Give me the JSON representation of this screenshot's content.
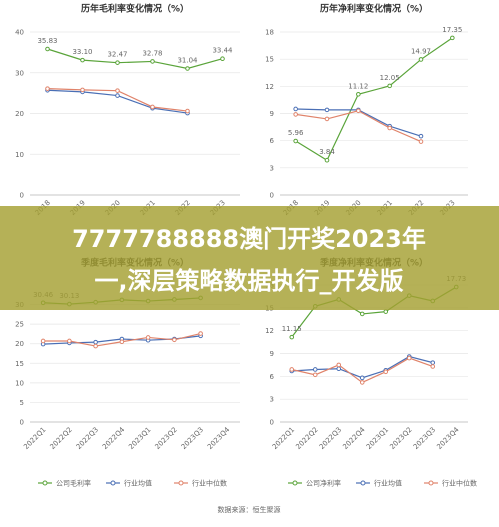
{
  "chart_data": [
    {
      "type": "line",
      "title": "历年毛利率变化情况（%）",
      "categories": [
        "2018",
        "2019",
        "2020",
        "2021",
        "2022",
        "2023"
      ],
      "ylim": [
        0,
        40
      ],
      "yticks": [
        0,
        10,
        20,
        30,
        40
      ],
      "grid": true,
      "series": [
        {
          "name": "公司毛利率",
          "color": "#5aa43a",
          "values": [
            35.83,
            33.1,
            32.47,
            32.78,
            31.04,
            33.44
          ],
          "value_labels": [
            "35.83",
            "33.10",
            "32.47",
            "32.78",
            "31.04",
            "33.44"
          ]
        },
        {
          "name": "行业均值",
          "color": "#4a6fb5",
          "values": [
            25.7,
            25.3,
            24.4,
            21.3,
            20.1,
            null
          ]
        },
        {
          "name": "行业中位数",
          "color": "#e0836a",
          "values": [
            26.1,
            25.8,
            25.6,
            21.6,
            20.6,
            null
          ]
        }
      ]
    },
    {
      "type": "line",
      "title": "历年净利率变化情况（%）",
      "categories": [
        "2018",
        "2019",
        "2020",
        "2021",
        "2022",
        "2023"
      ],
      "ylim": [
        0,
        18
      ],
      "yticks": [
        0,
        3,
        6,
        9,
        12,
        15,
        18
      ],
      "grid": true,
      "series": [
        {
          "name": "公司净利率",
          "color": "#5aa43a",
          "values": [
            5.96,
            3.84,
            11.12,
            12.05,
            14.97,
            17.35
          ],
          "value_labels": [
            "5.96",
            "3.84",
            "11.12",
            "12.05",
            "14.97",
            "17.35"
          ]
        },
        {
          "name": "行业均值",
          "color": "#4a6fb5",
          "values": [
            9.5,
            9.4,
            9.4,
            7.6,
            6.5,
            null
          ]
        },
        {
          "name": "行业中位数",
          "color": "#e0836a",
          "values": [
            8.9,
            8.4,
            9.3,
            7.4,
            5.9,
            null
          ]
        }
      ]
    },
    {
      "type": "line",
      "title": "季度毛利率变化情况（%）",
      "categories": [
        "2022Q1",
        "2022Q2",
        "2022Q3",
        "2022Q4",
        "2023Q1",
        "2023Q2",
        "2023Q3",
        "2023Q4"
      ],
      "ylim": [
        0,
        35
      ],
      "yticks": [
        0,
        5,
        10,
        15,
        20,
        25,
        30
      ],
      "grid": true,
      "legend": "bottom",
      "series": [
        {
          "name": "公司毛利率",
          "color": "#5aa43a",
          "values": [
            30.46,
            30.13,
            30.6,
            31.2,
            30.9,
            31.3,
            31.7,
            null
          ],
          "value_labels": [
            "30.46",
            "30.13",
            null,
            null,
            null,
            null,
            null,
            null
          ]
        },
        {
          "name": "行业均值",
          "color": "#4a6fb5",
          "values": [
            19.9,
            20.2,
            20.4,
            21.2,
            20.9,
            21.2,
            22.0,
            null
          ]
        },
        {
          "name": "行业中位数",
          "color": "#e0836a",
          "values": [
            20.7,
            20.7,
            19.4,
            20.5,
            21.6,
            21.0,
            22.6,
            null
          ]
        }
      ]
    },
    {
      "type": "line",
      "title": "季度净利率变化情况（%）",
      "categories": [
        "2022Q1",
        "2022Q2",
        "2022Q3",
        "2022Q4",
        "2023Q1",
        "2023Q2",
        "2023Q3",
        "2023Q4"
      ],
      "ylim": [
        0,
        18
      ],
      "yticks": [
        0,
        3,
        6,
        9,
        12,
        15,
        18
      ],
      "grid": true,
      "legend": "bottom",
      "series": [
        {
          "name": "公司净利率",
          "color": "#5aa43a",
          "values": [
            11.15,
            15.2,
            16.1,
            14.2,
            14.5,
            16.6,
            15.9,
            17.73
          ],
          "value_labels": [
            "11.15",
            null,
            null,
            null,
            null,
            null,
            null,
            "17.73"
          ]
        },
        {
          "name": "行业均值",
          "color": "#4a6fb5",
          "values": [
            6.7,
            6.9,
            7.0,
            5.8,
            6.8,
            8.6,
            7.8,
            null
          ]
        },
        {
          "name": "行业中位数",
          "color": "#e0836a",
          "values": [
            6.9,
            6.2,
            7.5,
            5.2,
            6.6,
            8.4,
            7.3,
            null
          ]
        }
      ]
    }
  ],
  "banner": {
    "lines": [
      "7777788888澳门开奖2023年",
      "一,深层策略数据执行_开发版"
    ]
  },
  "source": "数据来源：恒生聚源"
}
